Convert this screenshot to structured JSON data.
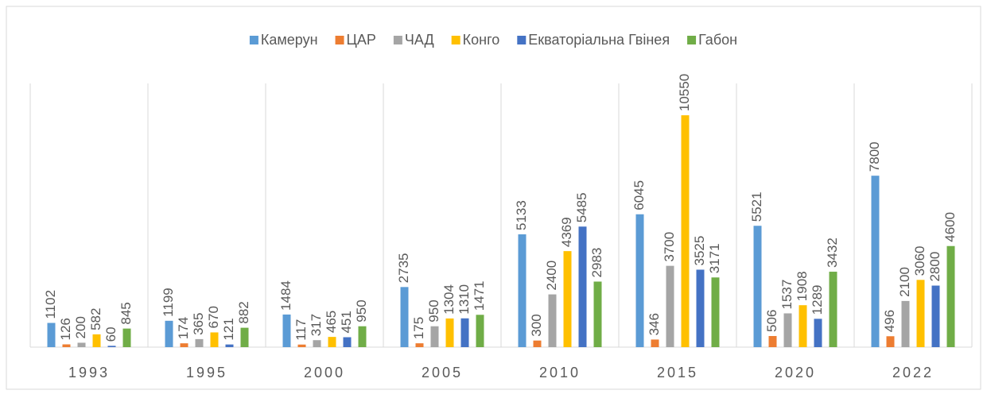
{
  "chart_data": {
    "type": "bar",
    "categories": [
      "1993",
      "1995",
      "2000",
      "2005",
      "2010",
      "2015",
      "2020",
      "2022"
    ],
    "series": [
      {
        "name": "Камерун",
        "color": "#5b9bd5",
        "values": [
          1102,
          1199,
          1484,
          2735,
          5133,
          6045,
          5521,
          7800
        ]
      },
      {
        "name": "ЦАР",
        "color": "#ed7d31",
        "values": [
          126,
          174,
          117,
          175,
          300,
          346,
          506,
          496
        ]
      },
      {
        "name": "ЧАД",
        "color": "#a5a5a5",
        "values": [
          200,
          365,
          317,
          950,
          2400,
          3700,
          1537,
          2100
        ]
      },
      {
        "name": "Конго",
        "color": "#ffc000",
        "values": [
          582,
          670,
          465,
          1304,
          4369,
          10550,
          1908,
          3060
        ]
      },
      {
        "name": "Екваторіальна Гвінея",
        "color": "#4472c4",
        "values": [
          60,
          121,
          451,
          1310,
          5485,
          3525,
          1289,
          2800
        ]
      },
      {
        "name": "Габон",
        "color": "#70ad47",
        "values": [
          845,
          882,
          950,
          1471,
          2983,
          3171,
          3432,
          4600
        ]
      }
    ],
    "ylim": [
      0,
      12000
    ],
    "legend": "top"
  }
}
